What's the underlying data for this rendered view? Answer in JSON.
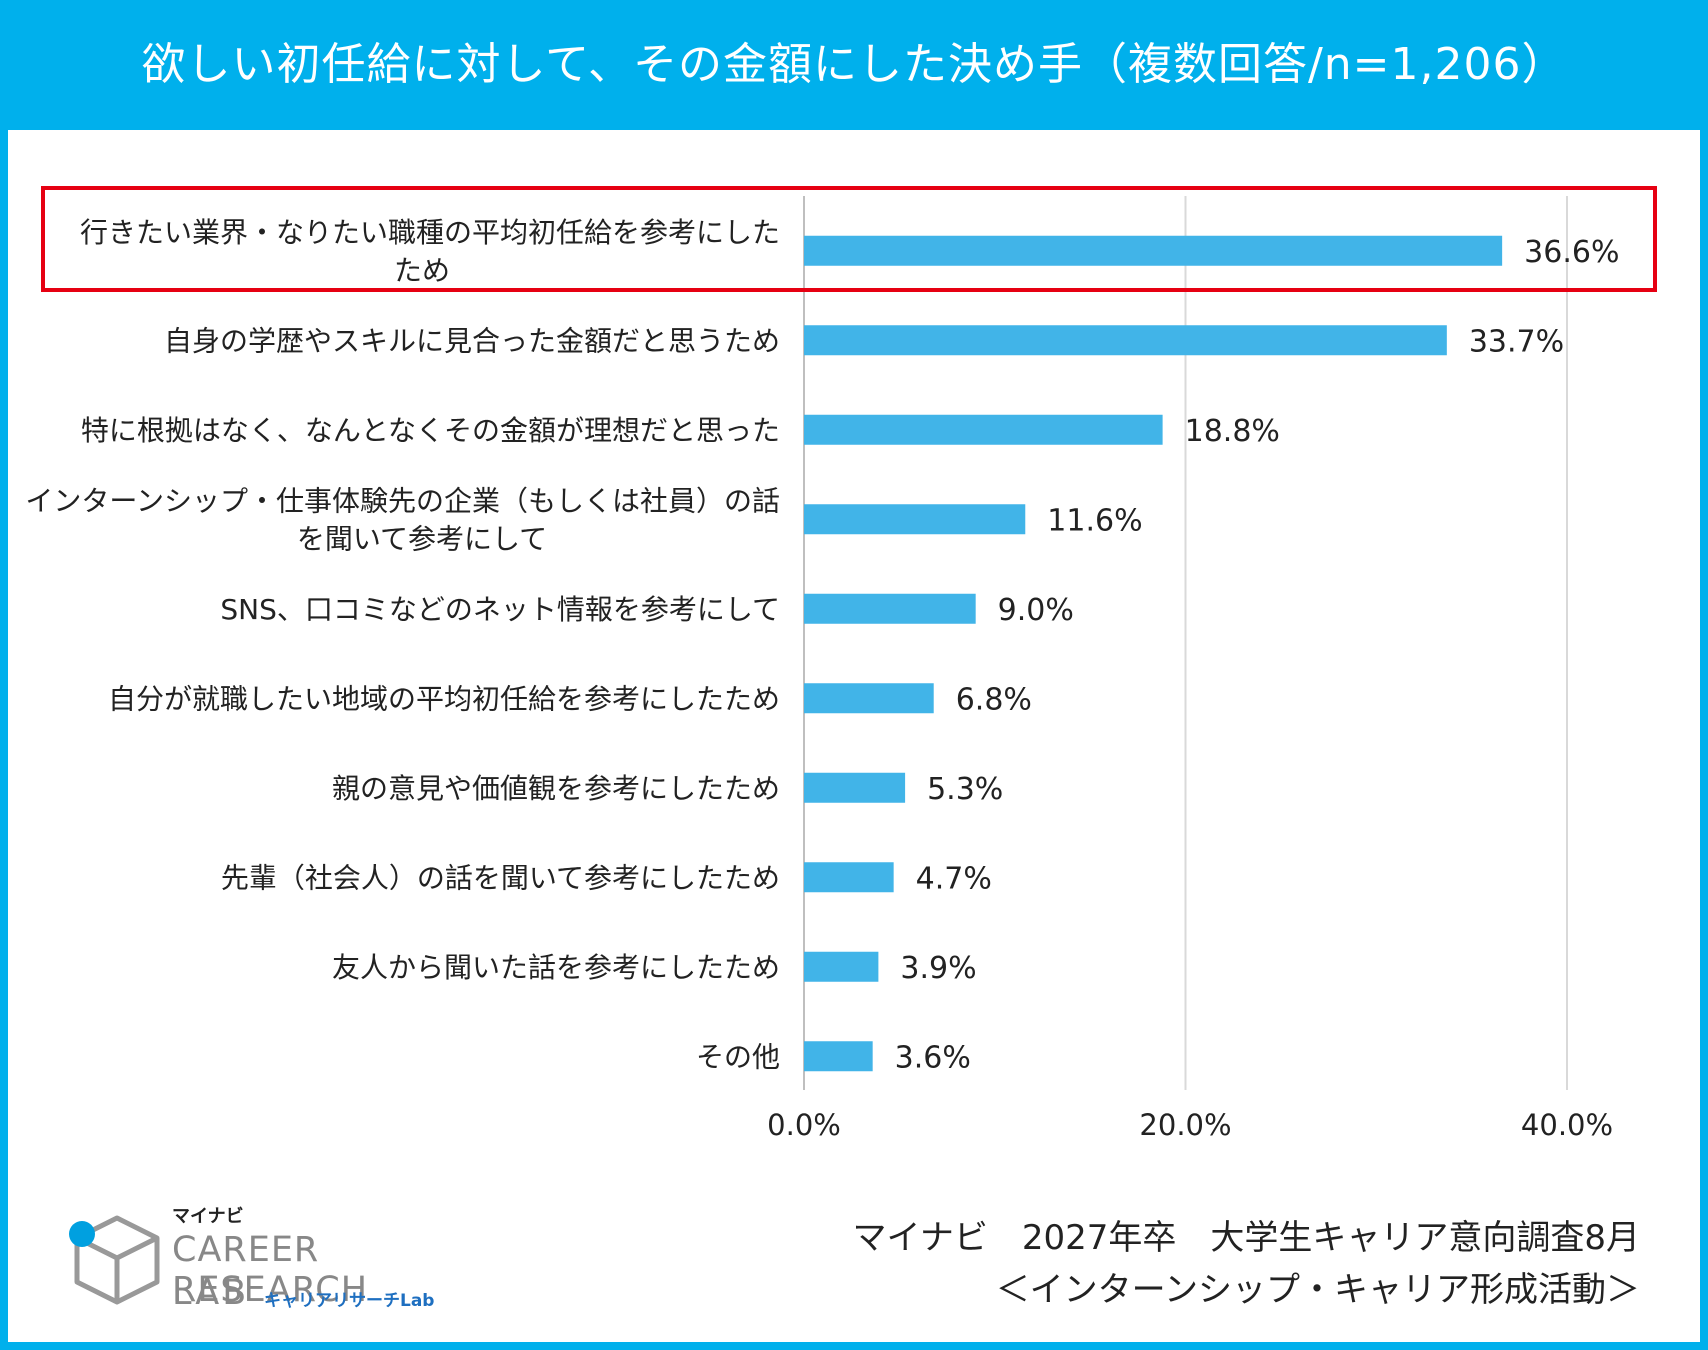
{
  "header": {
    "title": "欲しい初任給に対して、その金額にした決め手（複数回答/n=1,206）"
  },
  "colors": {
    "header_bg": "#00B0EC",
    "bar": "#41B4E8",
    "highlight_box": "#E60012",
    "grid": "#D9D9D9"
  },
  "chart_data": {
    "type": "bar",
    "orientation": "horizontal",
    "title": "欲しい初任給に対して、その金額にした決め手（複数回答/n=1,206）",
    "categories": [
      [
        "行きたい業界・なりたい職種の平均初任給を参考にした",
        "ため"
      ],
      [
        "自身の学歴やスキルに見合った金額だと思うため"
      ],
      [
        "特に根拠はなく、なんとなくその金額が理想だと思った"
      ],
      [
        "インターンシップ・仕事体験先の企業（もしくは社員）の話",
        "を聞いて参考にして"
      ],
      [
        "SNS、口コミなどのネット情報を参考にして"
      ],
      [
        "自分が就職したい地域の平均初任給を参考にしたため"
      ],
      [
        "親の意見や価値観を参考にしたため"
      ],
      [
        "先輩（社会人）の話を聞いて参考にしたため"
      ],
      [
        "友人から聞いた話を参考にしたため"
      ],
      [
        "その他"
      ]
    ],
    "values": [
      36.6,
      33.7,
      18.8,
      11.6,
      9.0,
      6.8,
      5.3,
      4.7,
      3.9,
      3.6
    ],
    "value_labels": [
      "36.6%",
      "33.7%",
      "18.8%",
      "11.6%",
      "9.0%",
      "6.8%",
      "5.3%",
      "4.7%",
      "3.9%",
      "3.6%"
    ],
    "xlim": [
      0,
      40
    ],
    "x_ticks": [
      0,
      20,
      40
    ],
    "x_tick_labels": [
      "0.0%",
      "20.0%",
      "40.0%"
    ],
    "grid": true,
    "highlighted_category_index": 0
  },
  "footer": {
    "source_line1": "マイナビ　2027年卒　大学生キャリア意向調査8月",
    "source_line2": "＜インターンシップ・キャリア形成活動＞"
  },
  "logo": {
    "maker": "マイナビ",
    "line1": "CAREER RESEARCH",
    "line2": "LAB",
    "sub": "キャリアリサーチLab"
  }
}
